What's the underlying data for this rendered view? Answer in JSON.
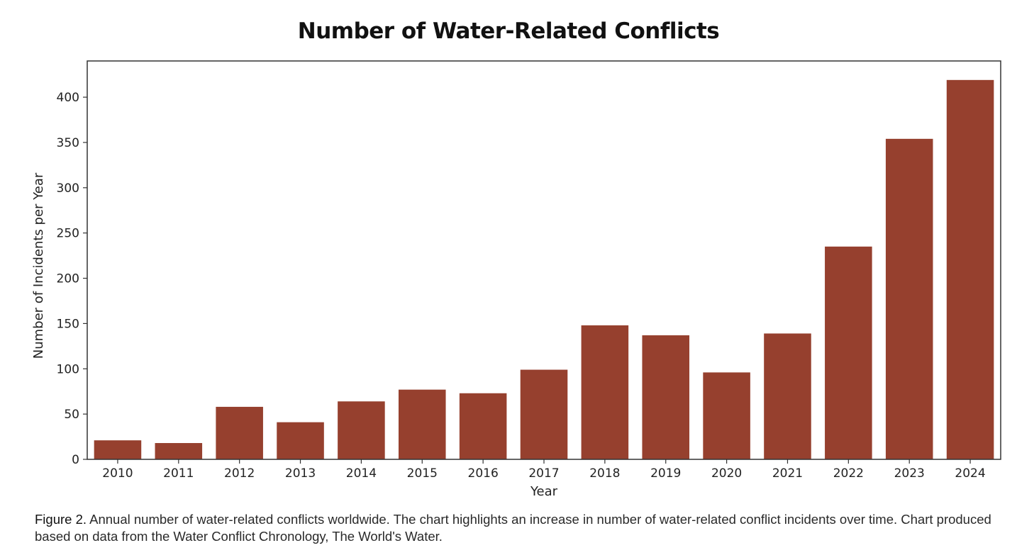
{
  "chart_data": {
    "type": "bar",
    "title": "Number of Water-Related Conflicts",
    "xlabel": "Year",
    "ylabel": "Number of Incidents per Year",
    "categories": [
      "2010",
      "2011",
      "2012",
      "2013",
      "2014",
      "2015",
      "2016",
      "2017",
      "2018",
      "2019",
      "2020",
      "2021",
      "2022",
      "2023",
      "2024"
    ],
    "values": [
      21,
      18,
      58,
      41,
      64,
      77,
      73,
      99,
      148,
      137,
      96,
      139,
      235,
      354,
      419
    ],
    "ylim": [
      0,
      440
    ],
    "yticks": [
      0,
      50,
      100,
      150,
      200,
      250,
      300,
      350,
      400
    ],
    "grid": false,
    "legend": "none",
    "bar_color": "#96402e"
  },
  "caption": {
    "label": "Figure 2.",
    "text": " Annual number of water-related conflicts worldwide. The chart highlights an increase in number of water-related conflict incidents over time. Chart produced based on data from the Water Conflict Chronology, The World's Water."
  }
}
